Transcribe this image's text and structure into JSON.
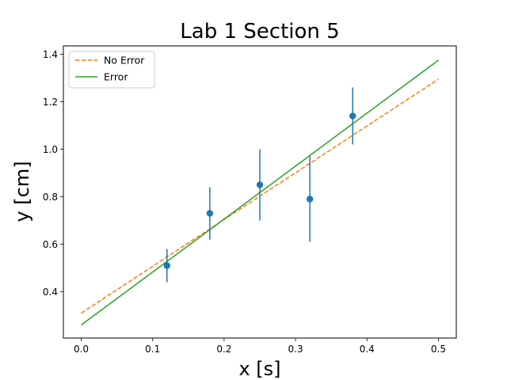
{
  "chart_data": {
    "type": "scatter",
    "title": "Lab 1 Section 5",
    "xlabel": "x [s]",
    "ylabel": "y [cm]",
    "xlim": [
      -0.025,
      0.525
    ],
    "ylim": [
      0.205,
      1.435
    ],
    "xticks": [
      0.0,
      0.1,
      0.2,
      0.3,
      0.4,
      0.5
    ],
    "yticks": [
      0.4,
      0.6,
      0.8,
      1.0,
      1.2,
      1.4
    ],
    "xtick_labels": [
      "0.0",
      "0.1",
      "0.2",
      "0.3",
      "0.4",
      "0.5"
    ],
    "ytick_labels": [
      "0.4",
      "0.6",
      "0.8",
      "1.0",
      "1.2",
      "1.4"
    ],
    "grid": false,
    "legend_position": "top-left",
    "points": {
      "x": [
        0.12,
        0.18,
        0.25,
        0.32,
        0.38
      ],
      "y": [
        0.51,
        0.73,
        0.85,
        0.79,
        1.14
      ],
      "yerr": [
        0.07,
        0.11,
        0.15,
        0.18,
        0.12
      ],
      "color": "#1f77b4"
    },
    "series": [
      {
        "name": "No Error",
        "style": "dashed",
        "color": "#ff7f0e",
        "x": [
          0.0,
          0.5
        ],
        "y": [
          0.31,
          1.295
        ]
      },
      {
        "name": "Error",
        "style": "solid",
        "color": "#2ca02c",
        "x": [
          0.0,
          0.5
        ],
        "y": [
          0.26,
          1.375
        ]
      }
    ]
  }
}
